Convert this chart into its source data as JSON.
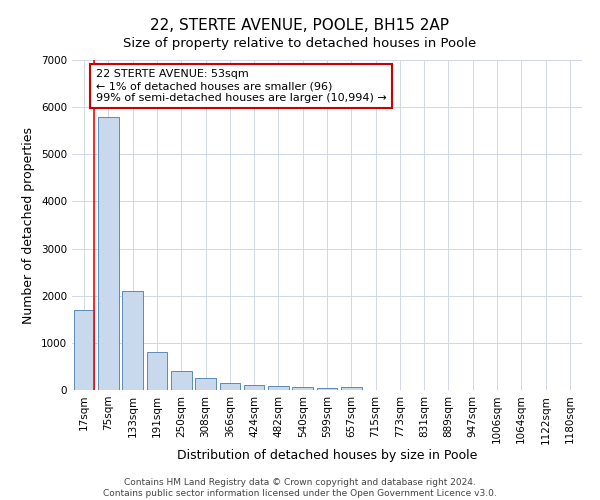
{
  "title": "22, STERTE AVENUE, POOLE, BH15 2AP",
  "subtitle": "Size of property relative to detached houses in Poole",
  "xlabel": "Distribution of detached houses by size in Poole",
  "ylabel": "Number of detached properties",
  "categories": [
    "17sqm",
    "75sqm",
    "133sqm",
    "191sqm",
    "250sqm",
    "308sqm",
    "366sqm",
    "424sqm",
    "482sqm",
    "540sqm",
    "599sqm",
    "657sqm",
    "715sqm",
    "773sqm",
    "831sqm",
    "889sqm",
    "947sqm",
    "1006sqm",
    "1064sqm",
    "1122sqm",
    "1180sqm"
  ],
  "values": [
    1700,
    5800,
    2100,
    800,
    400,
    250,
    150,
    100,
    80,
    60,
    50,
    60,
    5,
    3,
    2,
    2,
    1,
    1,
    1,
    1,
    1
  ],
  "bar_color": "#c9d9ed",
  "bar_edge_color": "#5b8ab5",
  "red_line_x": 0.42,
  "annotation_text": "22 STERTE AVENUE: 53sqm\n← 1% of detached houses are smaller (96)\n99% of semi-detached houses are larger (10,994) →",
  "annotation_box_color": "#ffffff",
  "annotation_box_edge": "#cc0000",
  "ylim": [
    0,
    7000
  ],
  "yticks": [
    0,
    1000,
    2000,
    3000,
    4000,
    5000,
    6000,
    7000
  ],
  "footer_text": "Contains HM Land Registry data © Crown copyright and database right 2024.\nContains public sector information licensed under the Open Government Licence v3.0.",
  "background_color": "#ffffff",
  "grid_color": "#d0d8e8",
  "title_fontsize": 11,
  "subtitle_fontsize": 9.5,
  "axis_label_fontsize": 9,
  "tick_fontsize": 7.5,
  "annotation_fontsize": 8,
  "footer_fontsize": 6.5
}
